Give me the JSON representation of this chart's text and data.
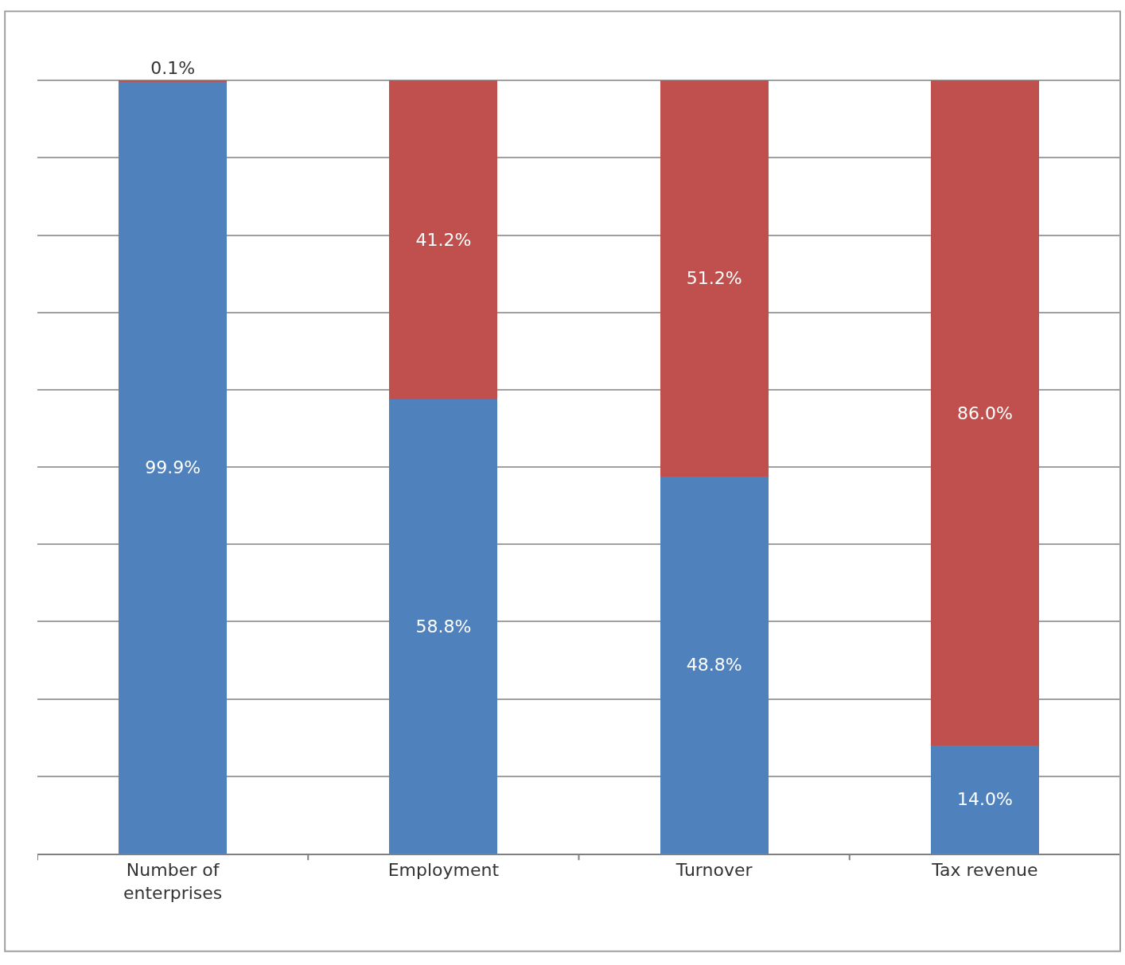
{
  "chart_data": {
    "type": "bar",
    "stacked": true,
    "categories": [
      "Number of enterprises",
      "Employment",
      "Turnover",
      "Tax revenue"
    ],
    "series": [
      {
        "color": "#4f81bd",
        "values": [
          99.9,
          58.8,
          48.8,
          14.0
        ],
        "value_labels": [
          "99.9%",
          "58.8%",
          "48.8%",
          "14.0%"
        ]
      },
      {
        "color": "#c0504d",
        "values": [
          0.1,
          41.2,
          51.2,
          86.0
        ],
        "value_labels": [
          "0.1%",
          "41.2%",
          "51.2%",
          "86.0%"
        ]
      }
    ],
    "tick_labels": "x",
    "grid": "y",
    "legend": false
  }
}
